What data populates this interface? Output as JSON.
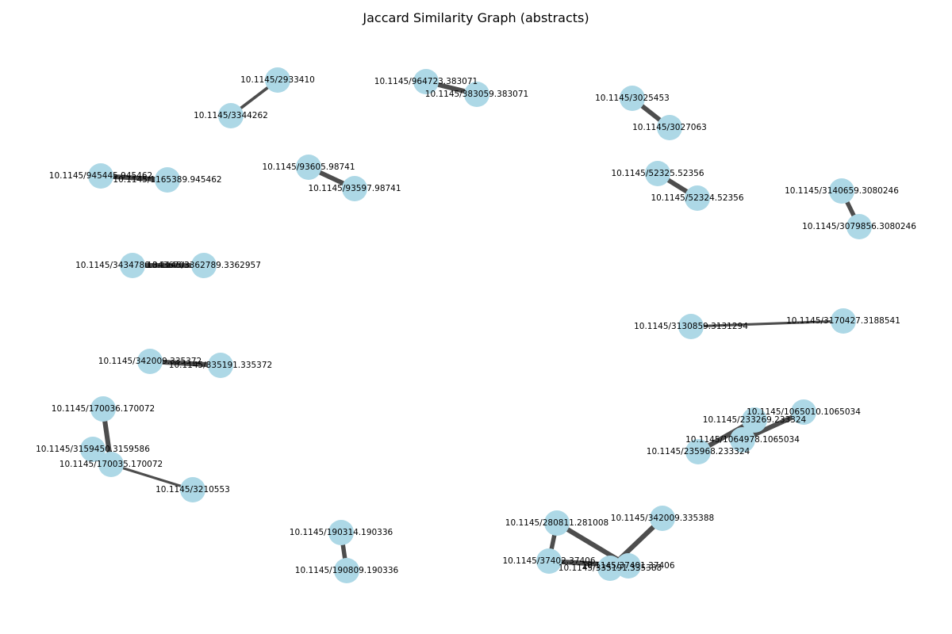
{
  "title": "Jaccard Similarity Graph (abstracts)",
  "colors": {
    "node": "#add8e6",
    "edge": "#444444",
    "background": "#ffffff"
  },
  "graph": {
    "nodes": [
      {
        "id": "n1",
        "label": "10.1145/2933410"
      },
      {
        "id": "n2",
        "label": "10.1145/3344262"
      },
      {
        "id": "n3",
        "label": "10.1145/964723.383071"
      },
      {
        "id": "n4",
        "label": "10.1145/383059.383071"
      },
      {
        "id": "n5",
        "label": "10.1145/3025453"
      },
      {
        "id": "n6",
        "label": "10.1145/3027063"
      },
      {
        "id": "n7",
        "label": "10.1145/945445.945462"
      },
      {
        "id": "n8",
        "label": "10.1145/1165389.945462"
      },
      {
        "id": "n9",
        "label": "10.1145/93605.98741"
      },
      {
        "id": "n10",
        "label": "10.1145/93597.98741"
      },
      {
        "id": "n11",
        "label": "10.1145/52325.52356"
      },
      {
        "id": "n12",
        "label": "10.1145/52324.52356"
      },
      {
        "id": "n13",
        "label": "10.1145/3140659.3080246"
      },
      {
        "id": "n14",
        "label": "10.1145/3079856.3080246"
      },
      {
        "id": "n15",
        "label": "10.1145/3434780.3436703"
      },
      {
        "id": "n16",
        "label": "10.1145/3362789.3362957"
      },
      {
        "id": "n17",
        "label": "10.1145/3130859.3131294"
      },
      {
        "id": "n18",
        "label": "10.1145/3170427.3188541"
      },
      {
        "id": "n19",
        "label": "10.1145/342009.335372"
      },
      {
        "id": "n20",
        "label": "10.1145/335191.335372"
      },
      {
        "id": "n21",
        "label": "10.1145/170036.170072"
      },
      {
        "id": "n22",
        "label": "10.1145/3159450.3159586"
      },
      {
        "id": "n23",
        "label": "10.1145/170035.170072"
      },
      {
        "id": "n24",
        "label": "10.1145/3210553"
      },
      {
        "id": "n25",
        "label": "10.1145/1065010.1065034"
      },
      {
        "id": "n26",
        "label": "10.1145/233269.233324"
      },
      {
        "id": "n27",
        "label": "10.1145/1064978.1065034"
      },
      {
        "id": "n28",
        "label": "10.1145/235968.233324"
      },
      {
        "id": "n29",
        "label": "10.1145/190314.190336"
      },
      {
        "id": "n30",
        "label": "10.1145/190809.190336"
      },
      {
        "id": "n31",
        "label": "10.1145/342009.335388"
      },
      {
        "id": "n32",
        "label": "10.1145/280811.281008"
      },
      {
        "id": "n33",
        "label": "10.1145/37402.37406"
      },
      {
        "id": "n34",
        "label": "10.1145/335191.335388"
      },
      {
        "id": "n35",
        "label": "10.1145/37401.37406"
      }
    ],
    "edges": [
      {
        "source": "n1",
        "target": "n2",
        "weight": 0.45
      },
      {
        "source": "n3",
        "target": "n4",
        "weight": 0.8
      },
      {
        "source": "n5",
        "target": "n6",
        "weight": 0.8
      },
      {
        "source": "n7",
        "target": "n8",
        "weight": 0.85
      },
      {
        "source": "n9",
        "target": "n10",
        "weight": 0.8
      },
      {
        "source": "n11",
        "target": "n12",
        "weight": 0.8
      },
      {
        "source": "n13",
        "target": "n14",
        "weight": 0.75
      },
      {
        "source": "n15",
        "target": "n16",
        "weight": 0.85
      },
      {
        "source": "n17",
        "target": "n18",
        "weight": 0.35
      },
      {
        "source": "n19",
        "target": "n20",
        "weight": 0.85
      },
      {
        "source": "n21",
        "target": "n23",
        "weight": 0.85
      },
      {
        "source": "n22",
        "target": "n23",
        "weight": 0.85
      },
      {
        "source": "n23",
        "target": "n24",
        "weight": 0.35
      },
      {
        "source": "n25",
        "target": "n27",
        "weight": 0.85
      },
      {
        "source": "n26",
        "target": "n28",
        "weight": 0.85
      },
      {
        "source": "n29",
        "target": "n30",
        "weight": 0.75
      },
      {
        "source": "n32",
        "target": "n33",
        "weight": 0.75
      },
      {
        "source": "n32",
        "target": "n35",
        "weight": 0.85
      },
      {
        "source": "n31",
        "target": "n34",
        "weight": 0.85
      },
      {
        "source": "n33",
        "target": "n35",
        "weight": 0.85
      }
    ]
  }
}
